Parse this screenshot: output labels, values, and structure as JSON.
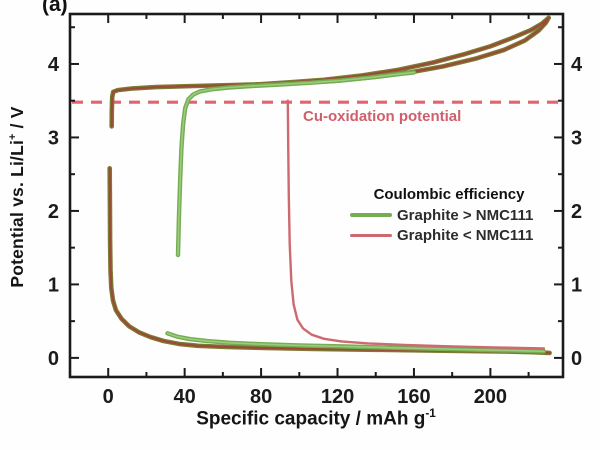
{
  "figure_label": "(a)",
  "axes": {
    "ylabel_pre": "Potential vs. Li/Li",
    "ylabel_sup": "+",
    "ylabel_post": " / V",
    "xlabel_main": "Specific capacity / mAh g",
    "xlabel_sup": "-1"
  },
  "annotation": {
    "cu_oxidation_label": "Cu-oxidation potential",
    "color": "#d05f6c"
  },
  "legend": {
    "title": "Coulombic efficiency",
    "items": [
      {
        "label": "Graphite > NMC111",
        "color": "#74ad52",
        "thickness": 4
      },
      {
        "label": "Graphite < NMC111",
        "color": "#cd6a70",
        "thickness": 3
      }
    ]
  },
  "colors": {
    "axis": "#1b1b1b",
    "background": "#fefefe"
  },
  "chart_data": {
    "type": "line",
    "title": "",
    "xlabel": "Specific capacity / mAh g^-1",
    "ylabel": "Potential vs. Li/Li+ / V",
    "xlim": [
      -20,
      238
    ],
    "ylim": [
      -0.26,
      4.68
    ],
    "xticks": [
      0,
      40,
      80,
      120,
      160,
      200
    ],
    "xticks_minor": [
      20,
      60,
      100,
      140,
      180,
      220
    ],
    "yticks": [
      0,
      1,
      2,
      3,
      4
    ],
    "yticks_minor": [
      0.5,
      1.5,
      2.5,
      3.5,
      4.5
    ],
    "grid": false,
    "legend_position": "center-right",
    "reference_line": {
      "y": 3.48,
      "style": "dashed",
      "color": "#e2646f",
      "label": "Cu-oxidation potential"
    },
    "series": [
      {
        "name": "full-cell-charge-discharge-loop",
        "color": "#7d7a33",
        "core_color": "#9a4a36",
        "width": 4.6,
        "core_width": 2,
        "points": [
          [
            1.8,
            3.15
          ],
          [
            1.9,
            3.35
          ],
          [
            2.1,
            3.55
          ],
          [
            2.6,
            3.62
          ],
          [
            5,
            3.645
          ],
          [
            12,
            3.665
          ],
          [
            25,
            3.685
          ],
          [
            45,
            3.7
          ],
          [
            70,
            3.717
          ],
          [
            95,
            3.737
          ],
          [
            118,
            3.77
          ],
          [
            140,
            3.825
          ],
          [
            158,
            3.885
          ],
          [
            175,
            3.965
          ],
          [
            192,
            4.07
          ],
          [
            207,
            4.19
          ],
          [
            218,
            4.32
          ],
          [
            225,
            4.45
          ],
          [
            229,
            4.56
          ],
          [
            230.5,
            4.63
          ],
          [
            227,
            4.55
          ],
          [
            221,
            4.46
          ],
          [
            212,
            4.36
          ],
          [
            200,
            4.24
          ],
          [
            186,
            4.13
          ],
          [
            170,
            4.02
          ],
          [
            152,
            3.92
          ],
          [
            133,
            3.845
          ],
          [
            113,
            3.785
          ],
          [
            95,
            3.75
          ],
          [
            80,
            3.725
          ],
          [
            68,
            3.71
          ]
        ]
      },
      {
        "name": "graphite-first-lithiation",
        "color": "#7d7a33",
        "core_color": "#9a4a36",
        "width": 4.6,
        "core_width": 2,
        "points": [
          [
            0.8,
            2.58
          ],
          [
            0.9,
            2.1
          ],
          [
            1.0,
            1.6
          ],
          [
            1.2,
            1.2
          ],
          [
            1.6,
            0.95
          ],
          [
            2.5,
            0.78
          ],
          [
            4,
            0.65
          ],
          [
            7,
            0.53
          ],
          [
            11,
            0.43
          ],
          [
            16,
            0.35
          ],
          [
            22,
            0.285
          ],
          [
            29,
            0.23
          ],
          [
            37,
            0.19
          ],
          [
            47,
            0.165
          ],
          [
            62,
            0.148
          ],
          [
            82,
            0.135
          ],
          [
            108,
            0.122
          ],
          [
            140,
            0.11
          ],
          [
            175,
            0.098
          ],
          [
            205,
            0.088
          ],
          [
            222,
            0.078
          ],
          [
            231,
            0.068
          ]
        ]
      },
      {
        "name": "graphite-gt-nmc111-anode-rise",
        "legend_label": "Graphite > NMC111",
        "color": "#74ad52",
        "core_color": "#9ccb7c",
        "width": 4.4,
        "core_width": 1.6,
        "points": [
          [
            36.5,
            1.4
          ],
          [
            37,
            1.9
          ],
          [
            37.6,
            2.4
          ],
          [
            38.3,
            2.85
          ],
          [
            39.2,
            3.18
          ],
          [
            40.3,
            3.4
          ],
          [
            42,
            3.52
          ],
          [
            44.5,
            3.585
          ],
          [
            48,
            3.625
          ],
          [
            54,
            3.655
          ],
          [
            63,
            3.68
          ],
          [
            75,
            3.7
          ],
          [
            90,
            3.72
          ],
          [
            106,
            3.745
          ],
          [
            122,
            3.775
          ],
          [
            137,
            3.815
          ],
          [
            150,
            3.855
          ],
          [
            160,
            3.885
          ]
        ]
      },
      {
        "name": "graphite-gt-nmc111-anode-low",
        "legend_label": "Graphite > NMC111",
        "color": "#74ad52",
        "core_color": "#9ccb7c",
        "width": 4.4,
        "core_width": 1.6,
        "points": [
          [
            31,
            0.335
          ],
          [
            36,
            0.29
          ],
          [
            43,
            0.255
          ],
          [
            52,
            0.228
          ],
          [
            64,
            0.205
          ],
          [
            80,
            0.186
          ],
          [
            100,
            0.17
          ],
          [
            124,
            0.155
          ],
          [
            150,
            0.138
          ],
          [
            178,
            0.12
          ],
          [
            205,
            0.103
          ],
          [
            228,
            0.09
          ]
        ]
      },
      {
        "name": "graphite-lt-nmc111-anode-drop",
        "legend_label": "Graphite < NMC111",
        "color": "#cd6a70",
        "width": 2.4,
        "points": [
          [
            94,
            3.5
          ],
          [
            94.2,
            2.9
          ],
          [
            94.5,
            2.2
          ],
          [
            95,
            1.55
          ],
          [
            95.8,
            1.05
          ],
          [
            97,
            0.73
          ],
          [
            99,
            0.52
          ],
          [
            102,
            0.4
          ],
          [
            106.5,
            0.315
          ],
          [
            113,
            0.26
          ],
          [
            122,
            0.225
          ],
          [
            136,
            0.197
          ],
          [
            155,
            0.175
          ],
          [
            178,
            0.158
          ],
          [
            202,
            0.143
          ],
          [
            228,
            0.128
          ]
        ]
      }
    ]
  }
}
